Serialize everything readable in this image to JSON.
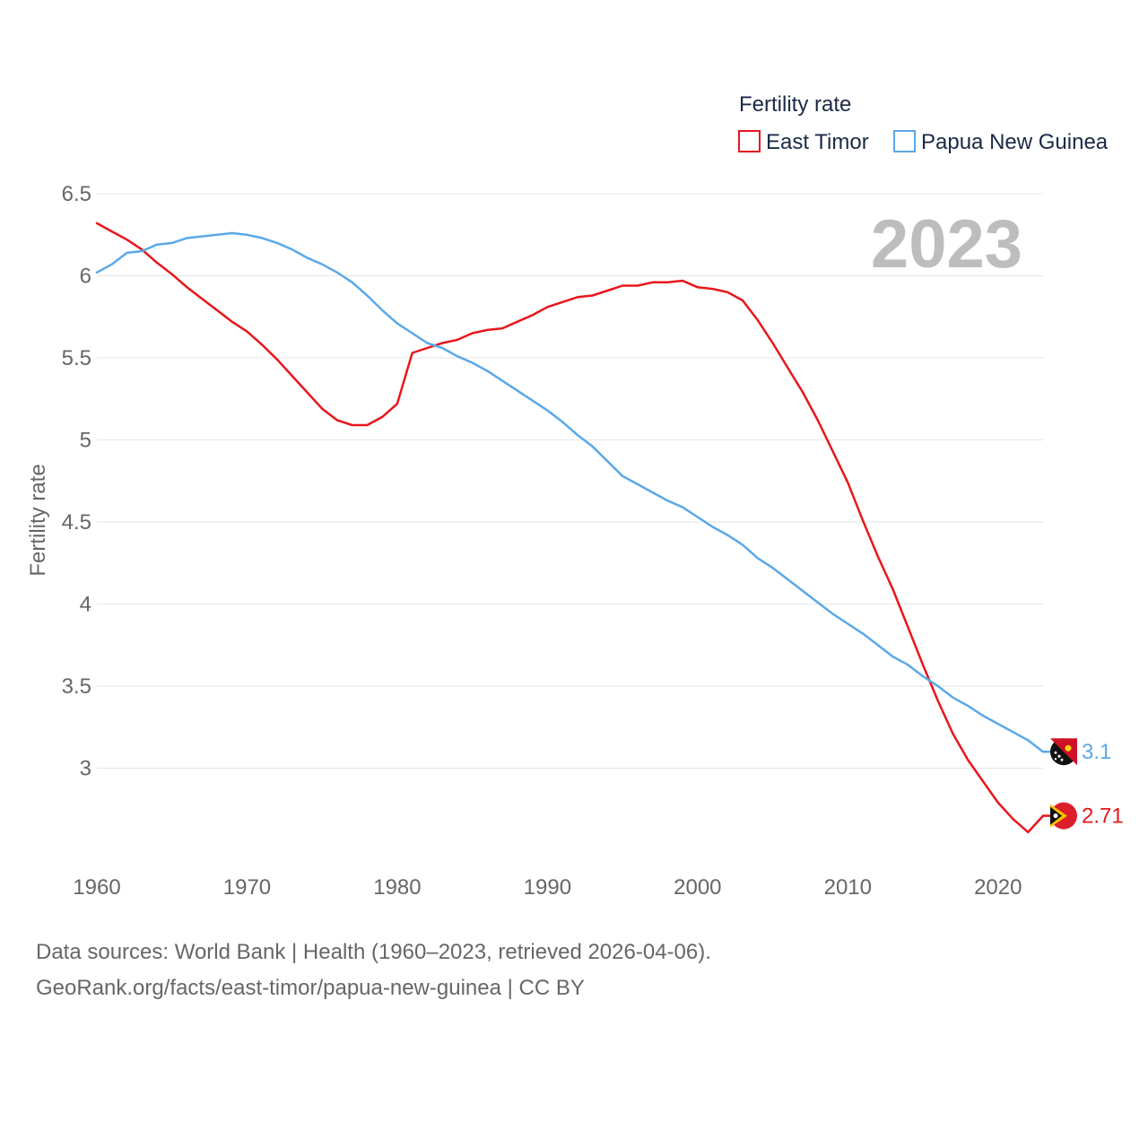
{
  "chart_data": {
    "type": "line",
    "title": "",
    "xlabel": "",
    "ylabel": "Fertility rate",
    "legend_title": "Fertility rate",
    "legend_position": "top-right",
    "year_label": "2023",
    "xlim": [
      1960,
      2023
    ],
    "ylim": [
      2.5,
      6.5
    ],
    "xticks": [
      "1960",
      "1970",
      "1980",
      "1990",
      "2000",
      "2010",
      "2020"
    ],
    "yticks": [
      "3",
      "3.5",
      "4",
      "4.5",
      "5",
      "5.5",
      "6",
      "6.5"
    ],
    "grid": true,
    "x": [
      1960,
      1961,
      1962,
      1963,
      1964,
      1965,
      1966,
      1967,
      1968,
      1969,
      1970,
      1971,
      1972,
      1973,
      1974,
      1975,
      1976,
      1977,
      1978,
      1979,
      1980,
      1981,
      1982,
      1983,
      1984,
      1985,
      1986,
      1987,
      1988,
      1989,
      1990,
      1991,
      1992,
      1993,
      1994,
      1995,
      1996,
      1997,
      1998,
      1999,
      2000,
      2001,
      2002,
      2003,
      2004,
      2005,
      2006,
      2007,
      2008,
      2009,
      2010,
      2011,
      2012,
      2013,
      2014,
      2015,
      2016,
      2017,
      2018,
      2019,
      2020,
      2021,
      2022,
      2023
    ],
    "series": [
      {
        "name": "East Timor",
        "color": "#e8161b",
        "end_label": "2.71",
        "values": [
          6.32,
          6.27,
          6.22,
          6.16,
          6.08,
          6.01,
          5.93,
          5.86,
          5.79,
          5.72,
          5.66,
          5.58,
          5.49,
          5.39,
          5.29,
          5.19,
          5.12,
          5.09,
          5.09,
          5.14,
          5.22,
          5.53,
          5.56,
          5.59,
          5.61,
          5.65,
          5.67,
          5.68,
          5.72,
          5.76,
          5.81,
          5.84,
          5.87,
          5.88,
          5.91,
          5.94,
          5.94,
          5.96,
          5.96,
          5.97,
          5.93,
          5.92,
          5.9,
          5.85,
          5.73,
          5.59,
          5.44,
          5.29,
          5.12,
          4.93,
          4.74,
          4.51,
          4.29,
          4.09,
          3.86,
          3.63,
          3.41,
          3.21,
          3.05,
          2.92,
          2.79,
          2.69,
          2.61,
          2.71
        ]
      },
      {
        "name": "Papua New Guinea",
        "color": "#5aa8e8",
        "end_label": "3.1",
        "values": [
          6.02,
          6.07,
          6.14,
          6.15,
          6.19,
          6.2,
          6.23,
          6.24,
          6.25,
          6.26,
          6.25,
          6.23,
          6.2,
          6.16,
          6.11,
          6.07,
          6.02,
          5.96,
          5.88,
          5.79,
          5.71,
          5.65,
          5.59,
          5.56,
          5.51,
          5.47,
          5.42,
          5.36,
          5.3,
          5.24,
          5.18,
          5.11,
          5.03,
          4.96,
          4.87,
          4.78,
          4.73,
          4.68,
          4.63,
          4.59,
          4.53,
          4.47,
          4.42,
          4.36,
          4.28,
          4.22,
          4.15,
          4.08,
          4.01,
          3.94,
          3.88,
          3.82,
          3.75,
          3.68,
          3.63,
          3.56,
          3.5,
          3.43,
          3.38,
          3.32,
          3.27,
          3.22,
          3.17,
          3.1
        ]
      }
    ]
  },
  "sources": {
    "line1": "Data sources: World Bank | Health (1960–2023, retrieved 2026-04-06).",
    "line2": "GeoRank.org/facts/east-timor/papua-new-guinea | CC BY"
  }
}
